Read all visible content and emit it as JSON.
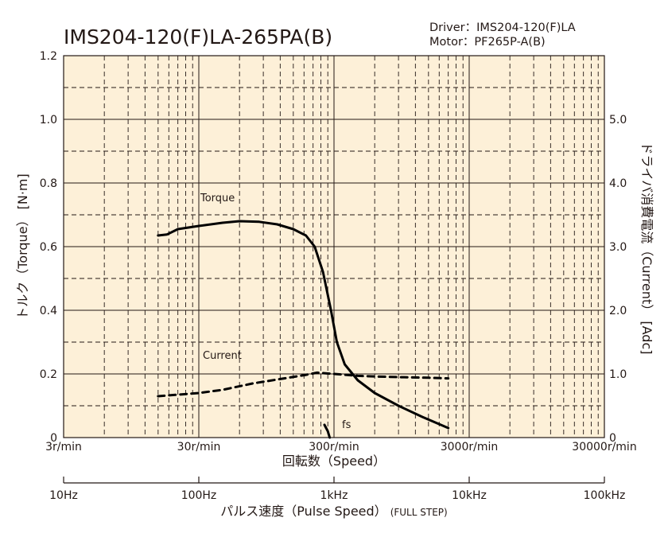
{
  "header": {
    "title": "IMS204-120(F)LA-265PA(B)",
    "driver": "Driver：IMS204-120(F)LA",
    "motor": "Motor：PF265P-A(B)"
  },
  "axes": {
    "left_label": "トルク（Torque） [N·m]",
    "right_label": "ドライバ消費電流（Current） [Adc]",
    "speed_label": "回転数（Speed）",
    "pulse_label_main": "パルス速度（Pulse Speed）",
    "pulse_label_sub": "(FULL STEP)",
    "left_ticks": [
      "0",
      "0.2",
      "0.4",
      "0.6",
      "0.8",
      "1.0",
      "1.2"
    ],
    "right_ticks": [
      "0",
      "1.0",
      "2.0",
      "3.0",
      "4.0",
      "5.0"
    ],
    "speed_ticks": [
      "3r/min",
      "30r/min",
      "300r/min",
      "3000r/min",
      "30000r/min"
    ],
    "pulse_ticks": [
      "10Hz",
      "100Hz",
      "1kHz",
      "10kHz",
      "100kHz"
    ]
  },
  "annotations": {
    "torque": "Torque",
    "current": "Current",
    "fs": "fs"
  },
  "colors": {
    "plot_bg": "#fdf0d8",
    "grid": "#231815",
    "curve": "#000000"
  },
  "chart_data": {
    "type": "line",
    "x_scale": "log",
    "x_unit": "Hz",
    "x_range": [
      10,
      100000
    ],
    "y_left_range": [
      0,
      1.2
    ],
    "y_right_range": [
      0,
      6
    ],
    "grid": true,
    "series": [
      {
        "name": "Torque",
        "axis": "left",
        "unit": "N·m",
        "style": "solid",
        "points": [
          [
            50,
            0.635
          ],
          [
            58,
            0.638
          ],
          [
            70,
            0.655
          ],
          [
            100,
            0.665
          ],
          [
            150,
            0.675
          ],
          [
            200,
            0.68
          ],
          [
            280,
            0.678
          ],
          [
            380,
            0.67
          ],
          [
            500,
            0.655
          ],
          [
            620,
            0.635
          ],
          [
            720,
            0.6
          ],
          [
            830,
            0.52
          ],
          [
            950,
            0.4
          ],
          [
            1050,
            0.3
          ],
          [
            1200,
            0.23
          ],
          [
            1500,
            0.18
          ],
          [
            2000,
            0.14
          ],
          [
            3000,
            0.1
          ],
          [
            4500,
            0.065
          ],
          [
            7000,
            0.03
          ]
        ]
      },
      {
        "name": "Current",
        "axis": "right",
        "unit": "Adc",
        "style": "dashed",
        "points": [
          [
            50,
            0.65
          ],
          [
            100,
            0.7
          ],
          [
            150,
            0.75
          ],
          [
            250,
            0.85
          ],
          [
            400,
            0.92
          ],
          [
            600,
            0.98
          ],
          [
            750,
            1.02
          ],
          [
            1000,
            1.0
          ],
          [
            1500,
            0.97
          ],
          [
            2000,
            0.96
          ],
          [
            3000,
            0.95
          ],
          [
            5000,
            0.94
          ],
          [
            7000,
            0.93
          ]
        ]
      },
      {
        "name": "fs",
        "axis": "left",
        "unit": "N·m",
        "style": "solid",
        "points": [
          [
            850,
            0.04
          ],
          [
            900,
            0.02
          ],
          [
            930,
            0.0
          ]
        ]
      }
    ]
  }
}
